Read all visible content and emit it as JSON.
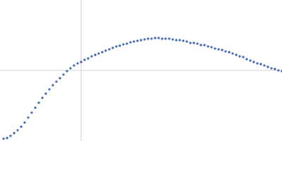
{
  "chart_data": {
    "type": "scatter",
    "color": "#3a62b0",
    "x": [
      5,
      10,
      15,
      20,
      25,
      30,
      35,
      40,
      45,
      50,
      55,
      60,
      65,
      70,
      75,
      80,
      85,
      90,
      95,
      100,
      105,
      110,
      115,
      120,
      125,
      130,
      135,
      140,
      145,
      150,
      155,
      160,
      165,
      170,
      175,
      180,
      185,
      190,
      195,
      200,
      205,
      210,
      215,
      220,
      225,
      230,
      235,
      240,
      245,
      250,
      255,
      260,
      265,
      270,
      275,
      280,
      285,
      290,
      295,
      300,
      305,
      310,
      315,
      320,
      325,
      330,
      335,
      340,
      345,
      350,
      355,
      360,
      365,
      370,
      375,
      380,
      385,
      390,
      395,
      400
    ],
    "values": [
      3,
      4,
      7,
      11,
      15,
      20,
      26,
      33,
      40,
      47,
      54,
      61,
      67,
      73,
      79,
      84,
      89,
      94,
      99,
      103,
      107,
      110,
      112,
      115,
      117,
      120,
      122,
      124,
      126,
      128,
      130,
      132,
      134,
      135,
      137,
      138,
      140,
      141,
      142,
      143,
      144,
      145,
      145,
      146,
      146,
      145,
      145,
      145,
      144,
      143,
      143,
      142,
      141,
      139,
      139,
      138,
      136,
      136,
      134,
      133,
      131,
      130,
      129,
      127,
      126,
      124,
      122,
      120,
      119,
      116,
      114,
      112,
      110,
      109,
      107,
      105,
      103,
      102,
      100,
      99
    ],
    "xlim": [
      0,
      400
    ],
    "ylim": [
      0,
      200
    ],
    "xticks": [
      115
    ],
    "yticks": [
      100
    ],
    "grid": true
  }
}
